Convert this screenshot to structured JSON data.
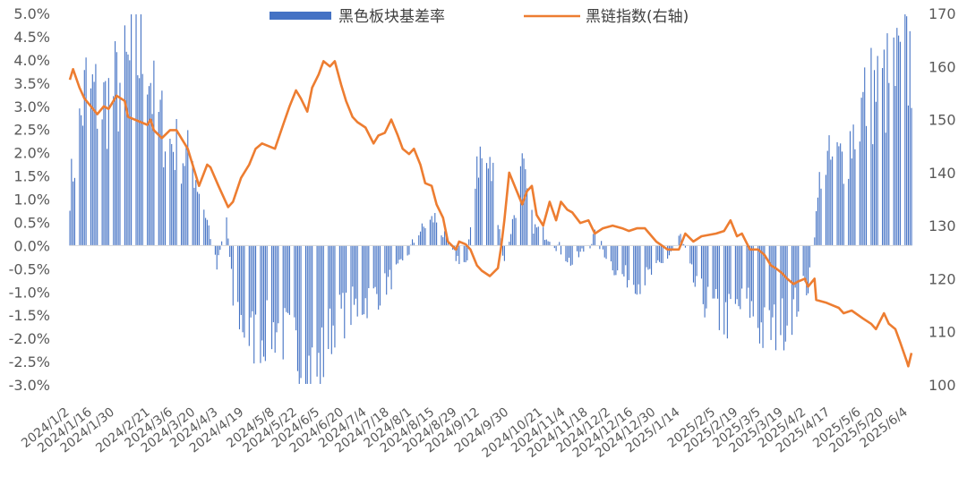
{
  "chart_data": {
    "type": "bar+line",
    "title": "",
    "legend": {
      "position": "top",
      "entries": [
        {
          "label": "黑色板块基差率",
          "kind": "bar"
        },
        {
          "label": "黑链指数(右轴)",
          "kind": "line"
        }
      ]
    },
    "colors": {
      "bar": "#4472C4",
      "line": "#ED7D31"
    },
    "y_left": {
      "range": [
        -0.03,
        0.05
      ],
      "ticks": [
        -0.03,
        -0.025,
        -0.02,
        -0.015,
        -0.01,
        -0.005,
        0.0,
        0.005,
        0.01,
        0.015,
        0.02,
        0.025,
        0.03,
        0.035,
        0.04,
        0.045,
        0.05
      ],
      "tick_labels": [
        "-3.0%",
        "-2.5%",
        "-2.0%",
        "-1.5%",
        "-1.0%",
        "-0.5%",
        "0.0%",
        "0.5%",
        "1.0%",
        "1.5%",
        "2.0%",
        "2.5%",
        "3.0%",
        "3.5%",
        "4.0%",
        "4.5%",
        "5.0%"
      ]
    },
    "y_right": {
      "range": [
        100,
        170
      ],
      "ticks": [
        100,
        110,
        120,
        130,
        140,
        150,
        160,
        170
      ],
      "tick_labels": [
        "100",
        "110",
        "120",
        "130",
        "140",
        "150",
        "160",
        "170"
      ]
    },
    "x_axis": {
      "start": "2024-01-02",
      "end": "2025-06-06",
      "tick_labels": [
        "2024/1/2",
        "2024/1/16",
        "2024/1/30",
        "2024/2/21",
        "2024/3/6",
        "2024/3/20",
        "2024/4/3",
        "2024/4/19",
        "2024/5/8",
        "2024/5/22",
        "2024/6/5",
        "2024/6/20",
        "2024/7/4",
        "2024/7/18",
        "2024/8/1",
        "2024/8/15",
        "2024/8/29",
        "2024/9/12",
        "2024/9/30",
        "2024/10/21",
        "2024/11/4",
        "2024/11/18",
        "2024/12/2",
        "2024/12/16",
        "2024/12/30",
        "2025/1/14",
        "2025/2/5",
        "2025/2/19",
        "2025/3/5",
        "2025/3/19",
        "2025/4/2",
        "2025/4/17",
        "2025/5/6",
        "2025/5/20",
        "2025/6/4"
      ]
    },
    "basis_rate_anchors": [
      {
        "x": "2024-01-02",
        "y": 0.012
      },
      {
        "x": "2024-01-12",
        "y": 0.034
      },
      {
        "x": "2024-01-22",
        "y": 0.03
      },
      {
        "x": "2024-02-05",
        "y": 0.036
      },
      {
        "x": "2024-02-19",
        "y": 0.044
      },
      {
        "x": "2024-02-23",
        "y": 0.03
      },
      {
        "x": "2024-03-04",
        "y": 0.022
      },
      {
        "x": "2024-03-18",
        "y": 0.018
      },
      {
        "x": "2024-03-28",
        "y": 0.004
      },
      {
        "x": "2024-04-02",
        "y": -0.005
      },
      {
        "x": "2024-04-08",
        "y": 0.006
      },
      {
        "x": "2024-04-12",
        "y": -0.012
      },
      {
        "x": "2024-04-22",
        "y": -0.02
      },
      {
        "x": "2024-05-10",
        "y": -0.018
      },
      {
        "x": "2024-05-24",
        "y": -0.024
      },
      {
        "x": "2024-06-03",
        "y": -0.028
      },
      {
        "x": "2024-06-14",
        "y": -0.016
      },
      {
        "x": "2024-06-28",
        "y": -0.013
      },
      {
        "x": "2024-07-12",
        "y": -0.01
      },
      {
        "x": "2024-07-26",
        "y": -0.004
      },
      {
        "x": "2024-08-05",
        "y": 0.003
      },
      {
        "x": "2024-08-15",
        "y": 0.006
      },
      {
        "x": "2024-08-26",
        "y": -0.002
      },
      {
        "x": "2024-09-04",
        "y": -0.004
      },
      {
        "x": "2024-09-10",
        "y": 0.02
      },
      {
        "x": "2024-09-20",
        "y": 0.015
      },
      {
        "x": "2024-09-27",
        "y": -0.004
      },
      {
        "x": "2024-10-08",
        "y": 0.016
      },
      {
        "x": "2024-10-15",
        "y": 0.004
      },
      {
        "x": "2024-10-25",
        "y": 0.002
      },
      {
        "x": "2024-11-08",
        "y": -0.004
      },
      {
        "x": "2024-11-22",
        "y": 0.002
      },
      {
        "x": "2024-12-06",
        "y": -0.006
      },
      {
        "x": "2024-12-20",
        "y": -0.008
      },
      {
        "x": "2025-01-03",
        "y": -0.004
      },
      {
        "x": "2025-01-14",
        "y": 0.002
      },
      {
        "x": "2025-01-24",
        "y": -0.01
      },
      {
        "x": "2025-02-10",
        "y": -0.016
      },
      {
        "x": "2025-02-24",
        "y": -0.012
      },
      {
        "x": "2025-03-07",
        "y": -0.019
      },
      {
        "x": "2025-03-21",
        "y": -0.016
      },
      {
        "x": "2025-04-03",
        "y": -0.008
      },
      {
        "x": "2025-04-08",
        "y": 0.006
      },
      {
        "x": "2025-04-11",
        "y": 0.017
      },
      {
        "x": "2025-04-25",
        "y": 0.019
      },
      {
        "x": "2025-05-09",
        "y": 0.032
      },
      {
        "x": "2025-05-23",
        "y": 0.035
      },
      {
        "x": "2025-06-06",
        "y": 0.04
      }
    ],
    "chain_index_points": [
      {
        "x": "2024-01-02",
        "y": 157.5
      },
      {
        "x": "2024-01-04",
        "y": 159.5
      },
      {
        "x": "2024-01-08",
        "y": 156
      },
      {
        "x": "2024-01-11",
        "y": 154
      },
      {
        "x": "2024-01-15",
        "y": 152.5
      },
      {
        "x": "2024-01-19",
        "y": 151
      },
      {
        "x": "2024-01-23",
        "y": 152.5
      },
      {
        "x": "2024-01-26",
        "y": 152
      },
      {
        "x": "2024-01-31",
        "y": 154.5
      },
      {
        "x": "2024-02-05",
        "y": 153.5
      },
      {
        "x": "2024-02-07",
        "y": 150.5
      },
      {
        "x": "2024-02-19",
        "y": 149
      },
      {
        "x": "2024-02-21",
        "y": 150
      },
      {
        "x": "2024-02-23",
        "y": 148
      },
      {
        "x": "2024-02-28",
        "y": 146.5
      },
      {
        "x": "2024-03-04",
        "y": 148
      },
      {
        "x": "2024-03-08",
        "y": 148
      },
      {
        "x": "2024-03-12",
        "y": 146
      },
      {
        "x": "2024-03-15",
        "y": 144.5
      },
      {
        "x": "2024-03-19",
        "y": 140.5
      },
      {
        "x": "2024-03-22",
        "y": 137.5
      },
      {
        "x": "2024-03-27",
        "y": 141.5
      },
      {
        "x": "2024-03-29",
        "y": 141
      },
      {
        "x": "2024-04-03",
        "y": 137.5
      },
      {
        "x": "2024-04-09",
        "y": 133.5
      },
      {
        "x": "2024-04-12",
        "y": 134.5
      },
      {
        "x": "2024-04-17",
        "y": 139
      },
      {
        "x": "2024-04-22",
        "y": 141.5
      },
      {
        "x": "2024-04-26",
        "y": 144.5
      },
      {
        "x": "2024-04-30",
        "y": 145.5
      },
      {
        "x": "2024-05-08",
        "y": 144.5
      },
      {
        "x": "2024-05-13",
        "y": 149
      },
      {
        "x": "2024-05-17",
        "y": 152.5
      },
      {
        "x": "2024-05-21",
        "y": 155.5
      },
      {
        "x": "2024-05-24",
        "y": 154
      },
      {
        "x": "2024-05-28",
        "y": 151.5
      },
      {
        "x": "2024-05-31",
        "y": 156
      },
      {
        "x": "2024-06-04",
        "y": 158.5
      },
      {
        "x": "2024-06-07",
        "y": 161
      },
      {
        "x": "2024-06-11",
        "y": 160
      },
      {
        "x": "2024-06-14",
        "y": 161
      },
      {
        "x": "2024-06-18",
        "y": 156.5
      },
      {
        "x": "2024-06-21",
        "y": 153.5
      },
      {
        "x": "2024-06-25",
        "y": 150.5
      },
      {
        "x": "2024-06-28",
        "y": 149.5
      },
      {
        "x": "2024-07-03",
        "y": 148.5
      },
      {
        "x": "2024-07-08",
        "y": 145.5
      },
      {
        "x": "2024-07-11",
        "y": 147
      },
      {
        "x": "2024-07-15",
        "y": 147.5
      },
      {
        "x": "2024-07-19",
        "y": 150
      },
      {
        "x": "2024-07-23",
        "y": 147
      },
      {
        "x": "2024-07-26",
        "y": 144.5
      },
      {
        "x": "2024-07-30",
        "y": 143.5
      },
      {
        "x": "2024-08-02",
        "y": 144.5
      },
      {
        "x": "2024-08-06",
        "y": 141.5
      },
      {
        "x": "2024-08-09",
        "y": 138
      },
      {
        "x": "2024-08-13",
        "y": 137.5
      },
      {
        "x": "2024-08-16",
        "y": 134
      },
      {
        "x": "2024-08-20",
        "y": 131.5
      },
      {
        "x": "2024-08-23",
        "y": 127
      },
      {
        "x": "2024-08-28",
        "y": 125.5
      },
      {
        "x": "2024-08-30",
        "y": 127
      },
      {
        "x": "2024-09-03",
        "y": 126.5
      },
      {
        "x": "2024-09-06",
        "y": 125.5
      },
      {
        "x": "2024-09-10",
        "y": 122.5
      },
      {
        "x": "2024-09-13",
        "y": 121.5
      },
      {
        "x": "2024-09-18",
        "y": 120.5
      },
      {
        "x": "2024-09-23",
        "y": 122
      },
      {
        "x": "2024-09-25",
        "y": 126
      },
      {
        "x": "2024-09-27",
        "y": 131
      },
      {
        "x": "2024-09-30",
        "y": 140
      },
      {
        "x": "2024-10-08",
        "y": 134
      },
      {
        "x": "2024-10-11",
        "y": 136.5
      },
      {
        "x": "2024-10-14",
        "y": 137.5
      },
      {
        "x": "2024-10-17",
        "y": 132
      },
      {
        "x": "2024-10-21",
        "y": 130
      },
      {
        "x": "2024-10-25",
        "y": 134.5
      },
      {
        "x": "2024-10-29",
        "y": 131
      },
      {
        "x": "2024-11-01",
        "y": 134.5
      },
      {
        "x": "2024-11-05",
        "y": 133
      },
      {
        "x": "2024-11-08",
        "y": 132.5
      },
      {
        "x": "2024-11-13",
        "y": 130.5
      },
      {
        "x": "2024-11-18",
        "y": 131
      },
      {
        "x": "2024-11-22",
        "y": 128.5
      },
      {
        "x": "2024-11-27",
        "y": 129.5
      },
      {
        "x": "2024-12-03",
        "y": 130
      },
      {
        "x": "2024-12-09",
        "y": 129.5
      },
      {
        "x": "2024-12-13",
        "y": 129
      },
      {
        "x": "2024-12-18",
        "y": 129.5
      },
      {
        "x": "2024-12-23",
        "y": 129.5
      },
      {
        "x": "2024-12-30",
        "y": 127
      },
      {
        "x": "2025-01-06",
        "y": 125.5
      },
      {
        "x": "2025-01-13",
        "y": 125.5
      },
      {
        "x": "2025-01-17",
        "y": 128.5
      },
      {
        "x": "2025-01-22",
        "y": 127
      },
      {
        "x": "2025-01-27",
        "y": 128
      },
      {
        "x": "2025-02-05",
        "y": 128.5
      },
      {
        "x": "2025-02-10",
        "y": 129
      },
      {
        "x": "2025-02-14",
        "y": 131
      },
      {
        "x": "2025-02-18",
        "y": 128
      },
      {
        "x": "2025-02-21",
        "y": 128.5
      },
      {
        "x": "2025-02-26",
        "y": 125.5
      },
      {
        "x": "2025-03-03",
        "y": 125.5
      },
      {
        "x": "2025-03-07",
        "y": 124.5
      },
      {
        "x": "2025-03-11",
        "y": 122.5
      },
      {
        "x": "2025-03-14",
        "y": 122
      },
      {
        "x": "2025-03-18",
        "y": 121
      },
      {
        "x": "2025-03-21",
        "y": 120
      },
      {
        "x": "2025-03-25",
        "y": 119
      },
      {
        "x": "2025-03-28",
        "y": 119.5
      },
      {
        "x": "2025-04-01",
        "y": 120
      },
      {
        "x": "2025-04-03",
        "y": 118.5
      },
      {
        "x": "2025-04-07",
        "y": 120
      },
      {
        "x": "2025-04-08",
        "y": 116
      },
      {
        "x": "2025-04-14",
        "y": 115.5
      },
      {
        "x": "2025-04-18",
        "y": 115
      },
      {
        "x": "2025-04-22",
        "y": 114.5
      },
      {
        "x": "2025-04-25",
        "y": 113.5
      },
      {
        "x": "2025-04-30",
        "y": 114
      },
      {
        "x": "2025-05-07",
        "y": 112.5
      },
      {
        "x": "2025-05-12",
        "y": 111.5
      },
      {
        "x": "2025-05-15",
        "y": 110.5
      },
      {
        "x": "2025-05-20",
        "y": 113.5
      },
      {
        "x": "2025-05-23",
        "y": 111.5
      },
      {
        "x": "2025-05-27",
        "y": 110.5
      },
      {
        "x": "2025-05-30",
        "y": 108
      },
      {
        "x": "2025-06-03",
        "y": 104.5
      },
      {
        "x": "2025-06-04",
        "y": 103.5
      },
      {
        "x": "2025-06-06",
        "y": 106
      }
    ]
  }
}
